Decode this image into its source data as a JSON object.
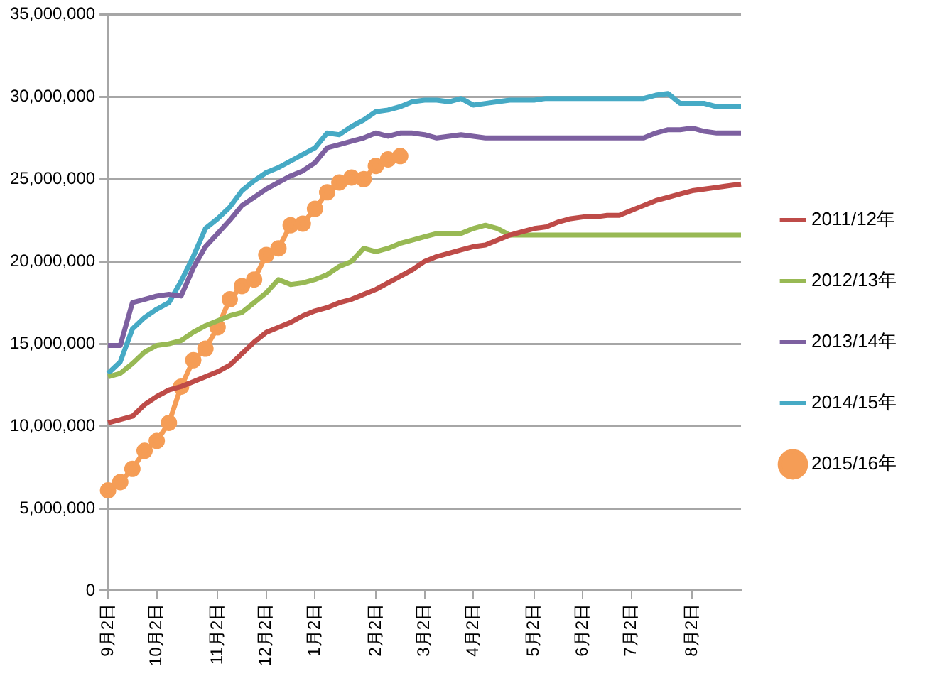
{
  "chart_data": {
    "type": "line",
    "legend": "right",
    "grid": "y",
    "marker": "none",
    "line_style": "solid",
    "categories": [
      "9月2日",
      null,
      null,
      null,
      "10月2日",
      null,
      null,
      null,
      null,
      "11月2日",
      null,
      null,
      null,
      "12月2日",
      null,
      null,
      null,
      "1月2日",
      null,
      null,
      null,
      null,
      "2月2日",
      null,
      null,
      null,
      "3月2日",
      null,
      null,
      null,
      "4月2日",
      null,
      null,
      null,
      null,
      "5月2日",
      null,
      null,
      null,
      "6月2日",
      null,
      null,
      null,
      "7月2日",
      null,
      null,
      null,
      null,
      "8月2日",
      null,
      null,
      null,
      null
    ],
    "ylim": [
      0,
      35000000
    ],
    "yticks": [
      {
        "value": 0,
        "label": "0"
      },
      {
        "value": 5000000,
        "label": "5,000,000"
      },
      {
        "value": 10000000,
        "label": "10,000,000"
      },
      {
        "value": 15000000,
        "label": "15,000,000"
      },
      {
        "value": 20000000,
        "label": "20,000,000"
      },
      {
        "value": 25000000,
        "label": "25,000,000"
      },
      {
        "value": 30000000,
        "label": "30,000,000"
      },
      {
        "value": 35000000,
        "label": "35,000,000"
      }
    ],
    "series": [
      {
        "name": "2011/12年",
        "color": "#be4b48",
        "values": [
          10200000,
          10400000,
          10600000,
          11300000,
          11800000,
          12200000,
          12400000,
          12700000,
          13000000,
          13300000,
          13700000,
          14400000,
          15100000,
          15700000,
          16000000,
          16300000,
          16700000,
          17000000,
          17200000,
          17500000,
          17700000,
          18000000,
          18300000,
          18700000,
          19100000,
          19500000,
          20000000,
          20300000,
          20500000,
          20700000,
          20900000,
          21000000,
          21300000,
          21600000,
          21800000,
          22000000,
          22100000,
          22400000,
          22600000,
          22700000,
          22700000,
          22800000,
          22800000,
          23100000,
          23400000,
          23700000,
          23900000,
          24100000,
          24300000,
          24400000,
          24500000,
          24600000,
          24700000
        ]
      },
      {
        "name": "2012/13年",
        "color": "#98b954",
        "values": [
          13000000,
          13200000,
          13800000,
          14500000,
          14900000,
          15000000,
          15200000,
          15700000,
          16100000,
          16400000,
          16700000,
          16900000,
          17500000,
          18100000,
          18900000,
          18600000,
          18700000,
          18900000,
          19200000,
          19700000,
          20000000,
          20800000,
          20600000,
          20800000,
          21100000,
          21300000,
          21500000,
          21700000,
          21700000,
          21700000,
          22000000,
          22200000,
          22000000,
          21600000,
          21600000,
          21600000,
          21600000,
          21600000,
          21600000,
          21600000,
          21600000,
          21600000,
          21600000,
          21600000,
          21600000,
          21600000,
          21600000,
          21600000,
          21600000,
          21600000,
          21600000,
          21600000,
          21600000
        ]
      },
      {
        "name": "2013/14年",
        "color": "#7d60a0",
        "values": [
          14900000,
          14900000,
          17500000,
          17700000,
          17900000,
          18000000,
          17900000,
          19600000,
          20900000,
          21700000,
          22500000,
          23400000,
          23900000,
          24400000,
          24800000,
          25200000,
          25500000,
          26000000,
          26900000,
          27100000,
          27300000,
          27500000,
          27800000,
          27600000,
          27800000,
          27800000,
          27700000,
          27500000,
          27600000,
          27700000,
          27600000,
          27500000,
          27500000,
          27500000,
          27500000,
          27500000,
          27500000,
          27500000,
          27500000,
          27500000,
          27500000,
          27500000,
          27500000,
          27500000,
          27500000,
          27800000,
          28000000,
          28000000,
          28100000,
          27900000,
          27800000,
          27800000,
          27800000
        ]
      },
      {
        "name": "2014/15年",
        "color": "#46aac5",
        "values": [
          13200000,
          13900000,
          15900000,
          16600000,
          17100000,
          17500000,
          18800000,
          20300000,
          22000000,
          22600000,
          23300000,
          24300000,
          24900000,
          25400000,
          25700000,
          26100000,
          26500000,
          26900000,
          27800000,
          27700000,
          28200000,
          28600000,
          29100000,
          29200000,
          29400000,
          29700000,
          29800000,
          29800000,
          29700000,
          29900000,
          29500000,
          29600000,
          29700000,
          29800000,
          29800000,
          29800000,
          29900000,
          29900000,
          29900000,
          29900000,
          29900000,
          29900000,
          29900000,
          29900000,
          29900000,
          30100000,
          30200000,
          29600000,
          29600000,
          29600000,
          29400000,
          29400000,
          29400000
        ]
      },
      {
        "name": "2015/16年",
        "color": "#f59d56",
        "marker": "circle",
        "values": [
          6100000,
          6600000,
          7400000,
          8500000,
          9100000,
          10200000,
          12400000,
          14000000,
          14700000,
          16000000,
          17700000,
          18500000,
          18900000,
          20400000,
          20800000,
          22200000,
          22300000,
          23200000,
          24200000,
          24800000,
          25100000,
          25000000,
          25800000,
          26200000,
          26400000,
          null,
          null,
          null,
          null,
          null,
          null,
          null,
          null,
          null,
          null,
          null,
          null,
          null,
          null,
          null,
          null,
          null,
          null,
          null,
          null,
          null,
          null,
          null,
          null,
          null,
          null,
          null,
          null
        ]
      }
    ]
  }
}
